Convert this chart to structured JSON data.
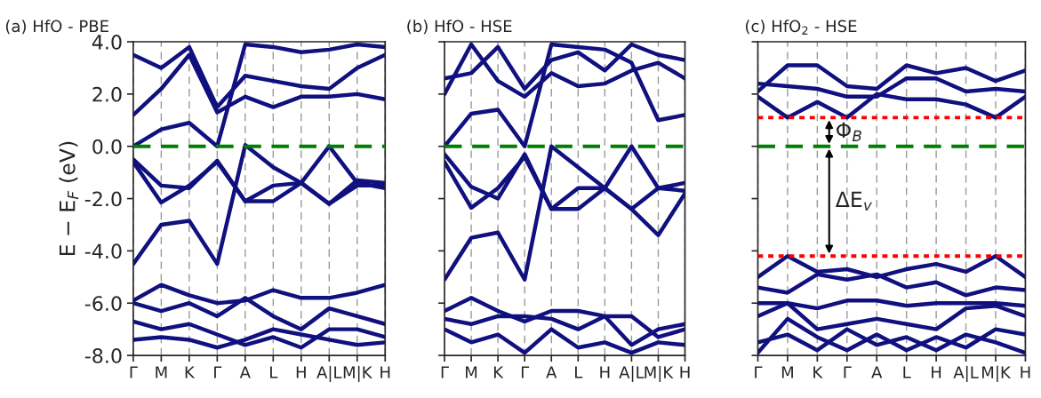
{
  "chart_data": [
    {
      "type": "line",
      "title": "(a) HfO - PBE",
      "ylabel": "E − E$_{F}$ (eV)",
      "categories": [
        "Γ",
        "M",
        "K",
        "Γ",
        "A",
        "L",
        "H",
        "A|L",
        "M|K",
        "H"
      ],
      "ylim": [
        -8,
        4
      ],
      "yticks": [
        {
          "value": -8,
          "label": "-8.0"
        },
        {
          "value": -6,
          "label": "-6.0"
        },
        {
          "value": -4,
          "label": "-4.0"
        },
        {
          "value": -2,
          "label": "-2.0"
        },
        {
          "value": 0,
          "label": "0.0"
        },
        {
          "value": 2,
          "label": "2.0"
        },
        {
          "value": 4,
          "label": "4.0"
        }
      ],
      "grid": "x",
      "ref_lines": [
        {
          "axis": "y",
          "value": 0,
          "color": "#008000",
          "line_style": "dashed"
        }
      ],
      "series": [
        {
          "color": "#10107f",
          "values": [
            -0.5,
            -1.5,
            -1.6,
            -0.55,
            -2.1,
            -2.1,
            -1.4,
            -2.2,
            -1.5,
            -1.5
          ]
        },
        {
          "color": "#10107f",
          "values": [
            -0.6,
            -2.15,
            -1.5,
            -0.6,
            -2.1,
            -1.5,
            -1.4,
            0.0,
            -1.4,
            -1.6
          ]
        },
        {
          "color": "#10107f",
          "values": [
            -4.5,
            -3.0,
            -2.85,
            -4.5,
            0.05,
            -0.8,
            -1.4,
            -2.2,
            -1.3,
            -1.4
          ]
        },
        {
          "color": "#10107f",
          "values": [
            0.0,
            0.65,
            0.9,
            0.0,
            3.9,
            3.8,
            3.6,
            3.7,
            3.9,
            3.8
          ]
        },
        {
          "color": "#10107f",
          "values": [
            1.2,
            2.2,
            3.5,
            1.3,
            1.9,
            1.5,
            1.9,
            1.9,
            2.0,
            1.8
          ]
        },
        {
          "color": "#10107f",
          "values": [
            3.5,
            3.0,
            3.8,
            1.5,
            2.7,
            2.5,
            2.3,
            2.2,
            3.0,
            3.5
          ]
        },
        {
          "color": "#10107f",
          "values": [
            -5.9,
            -5.3,
            -5.7,
            -6.0,
            -5.9,
            -5.5,
            -5.8,
            -5.8,
            -5.6,
            -5.3
          ]
        },
        {
          "color": "#10107f",
          "values": [
            -6.0,
            -6.3,
            -6.0,
            -6.5,
            -5.8,
            -6.5,
            -7.0,
            -6.2,
            -6.5,
            -6.8
          ]
        },
        {
          "color": "#10107f",
          "values": [
            -6.7,
            -7.0,
            -6.8,
            -7.2,
            -7.6,
            -7.3,
            -7.7,
            -7.0,
            -7.0,
            -7.3
          ]
        },
        {
          "color": "#10107f",
          "values": [
            -7.4,
            -7.3,
            -7.4,
            -7.7,
            -7.4,
            -7.0,
            -7.2,
            -7.4,
            -7.6,
            -7.5
          ]
        }
      ]
    },
    {
      "type": "line",
      "title": "(b) HfO - HSE",
      "categories": [
        "Γ",
        "M",
        "K",
        "Γ",
        "A",
        "L",
        "H",
        "A|L",
        "M|K",
        "H"
      ],
      "ylim": [
        -8,
        4
      ],
      "yticks": [
        {
          "value": -8,
          "label": null
        },
        {
          "value": -6,
          "label": null
        },
        {
          "value": -4,
          "label": null
        },
        {
          "value": -2,
          "label": null
        },
        {
          "value": 0,
          "label": null
        },
        {
          "value": 2,
          "label": null
        },
        {
          "value": 4,
          "label": null
        }
      ],
      "tick_labels": "x",
      "grid": "x",
      "ref_lines": [
        {
          "axis": "y",
          "value": 0,
          "color": "#008000",
          "line_style": "dashed"
        }
      ],
      "series": [
        {
          "color": "#10107f",
          "values": [
            -0.3,
            -1.55,
            -2.0,
            -0.3,
            -2.4,
            -2.4,
            -1.6,
            -2.4,
            -1.6,
            -1.7
          ]
        },
        {
          "color": "#10107f",
          "values": [
            -0.6,
            -2.35,
            -1.6,
            -0.4,
            -2.4,
            -1.6,
            -1.6,
            0.0,
            -1.6,
            -1.4
          ]
        },
        {
          "color": "#10107f",
          "values": [
            -5.1,
            -3.5,
            -3.3,
            -5.1,
            0.0,
            -0.8,
            -1.6,
            -2.4,
            -3.4,
            -1.8
          ]
        },
        {
          "color": "#10107f",
          "values": [
            0.0,
            1.25,
            1.4,
            0.0,
            3.9,
            3.8,
            3.7,
            3.2,
            1.0,
            1.2
          ]
        },
        {
          "color": "#10107f",
          "values": [
            2.0,
            3.9,
            2.5,
            1.9,
            2.8,
            2.3,
            2.4,
            2.9,
            3.2,
            2.6
          ]
        },
        {
          "color": "#10107f",
          "values": [
            2.6,
            2.8,
            3.8,
            2.2,
            3.3,
            3.6,
            2.9,
            3.9,
            3.5,
            3.3
          ]
        },
        {
          "color": "#10107f",
          "values": [
            -6.3,
            -5.8,
            -6.3,
            -6.7,
            -6.3,
            -6.3,
            -6.5,
            -6.5,
            -7.3,
            -7.0
          ]
        },
        {
          "color": "#10107f",
          "values": [
            -6.6,
            -6.8,
            -6.5,
            -6.5,
            -6.6,
            -7.0,
            -6.5,
            -7.6,
            -7.0,
            -6.8
          ]
        },
        {
          "color": "#10107f",
          "values": [
            -7.0,
            -7.5,
            -7.2,
            -7.9,
            -7.0,
            -7.7,
            -7.5,
            -7.9,
            -7.5,
            -7.6
          ]
        }
      ]
    },
    {
      "type": "line",
      "title": "(c) HfO$_{2}$ - HSE",
      "categories": [
        "Γ",
        "M",
        "K",
        "Γ",
        "A",
        "L",
        "H",
        "A|L",
        "M|K",
        "H"
      ],
      "ylim": [
        -8,
        4
      ],
      "yticks": [
        {
          "value": -8,
          "label": null
        },
        {
          "value": -6,
          "label": null
        },
        {
          "value": -4,
          "label": null
        },
        {
          "value": -2,
          "label": null
        },
        {
          "value": 0,
          "label": null
        },
        {
          "value": 2,
          "label": null
        },
        {
          "value": 4,
          "label": null
        }
      ],
      "tick_labels": "x",
      "grid": "x",
      "ref_lines": [
        {
          "axis": "y",
          "value": 0,
          "color": "#008000",
          "line_style": "dashed"
        },
        {
          "axis": "y",
          "value": 1.1,
          "color": "#ff0000",
          "line_style": "dotted"
        },
        {
          "axis": "y",
          "value": -4.2,
          "color": "#ff0000",
          "line_style": "dotted"
        }
      ],
      "annotations": [
        "Φ$_{B}$",
        "ΔE$_{v}$"
      ],
      "series": [
        {
          "color": "#10107f",
          "values": [
            1.9,
            1.1,
            1.7,
            1.1,
            2.0,
            1.8,
            1.8,
            1.6,
            1.1,
            1.9
          ]
        },
        {
          "color": "#10107f",
          "values": [
            2.4,
            2.3,
            2.2,
            1.9,
            1.9,
            2.6,
            2.6,
            2.1,
            2.2,
            2.1
          ]
        },
        {
          "color": "#10107f",
          "values": [
            2.1,
            3.1,
            3.1,
            2.3,
            2.2,
            3.1,
            2.8,
            3.0,
            2.5,
            2.9
          ]
        },
        {
          "color": "#10107f",
          "values": [
            -5.0,
            -4.2,
            -4.8,
            -4.7,
            -5.0,
            -4.7,
            -4.5,
            -4.8,
            -4.2,
            -5.0
          ]
        },
        {
          "color": "#10107f",
          "values": [
            -5.4,
            -5.6,
            -4.9,
            -5.1,
            -4.9,
            -5.4,
            -5.2,
            -5.7,
            -5.4,
            -5.5
          ]
        },
        {
          "color": "#10107f",
          "values": [
            -6.0,
            -6.0,
            -6.2,
            -5.9,
            -5.9,
            -6.1,
            -6.0,
            -6.0,
            -6.0,
            -6.1
          ]
        },
        {
          "color": "#10107f",
          "values": [
            -6.5,
            -6.0,
            -7.0,
            -6.8,
            -6.6,
            -6.8,
            -7.0,
            -6.2,
            -6.1,
            -6.5
          ]
        },
        {
          "color": "#10107f",
          "values": [
            -7.5,
            -7.2,
            -7.8,
            -7.0,
            -7.6,
            -7.3,
            -7.8,
            -7.2,
            -7.5,
            -7.9
          ]
        },
        {
          "color": "#10107f",
          "values": [
            -7.9,
            -6.6,
            -7.3,
            -7.8,
            -7.2,
            -7.8,
            -7.3,
            -7.7,
            -7.0,
            -7.2
          ]
        }
      ]
    }
  ]
}
